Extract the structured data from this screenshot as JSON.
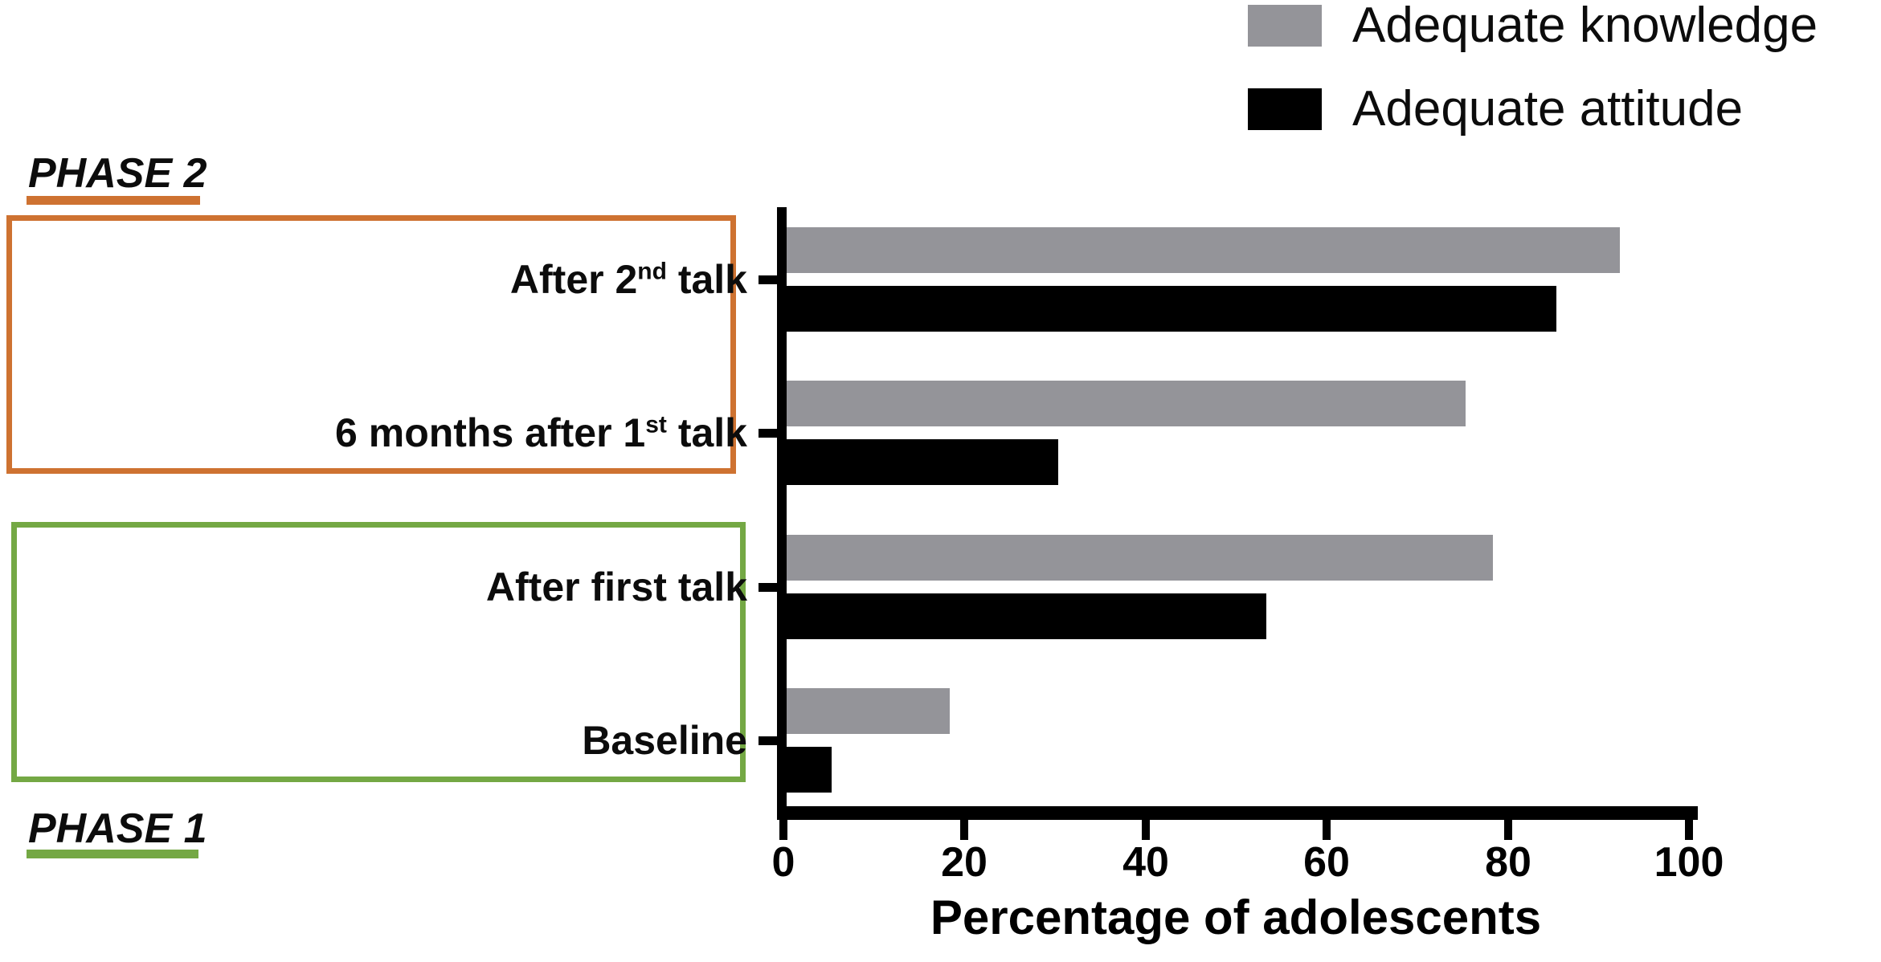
{
  "page": {
    "background": "#ffffff"
  },
  "legend": {
    "items": [
      {
        "label": "Adequate knowledge",
        "color": "#949499"
      },
      {
        "label": "Adequate attitude",
        "color": "#000000"
      }
    ]
  },
  "phases": {
    "phase2": {
      "label": "PHASE 2",
      "color": "#CE7231"
    },
    "phase1": {
      "label": "PHASE 1",
      "color": "#74A844"
    }
  },
  "chart_data": {
    "type": "bar",
    "orientation": "horizontal",
    "title": "",
    "xlabel": "Percentage of adolescents",
    "xlim": [
      0,
      100
    ],
    "xticks": [
      0,
      20,
      40,
      60,
      80,
      100
    ],
    "grid": false,
    "legend_position": "top-right",
    "categories": [
      {
        "pre": "After 2",
        "sup": "nd",
        "post": " talk"
      },
      {
        "pre": "6 months after 1",
        "sup": "st",
        "post": " talk"
      },
      {
        "pre": "After first talk",
        "sup": "",
        "post": ""
      },
      {
        "pre": "Baseline",
        "sup": "",
        "post": ""
      }
    ],
    "series": [
      {
        "name": "Adequate knowledge",
        "color": "#949499",
        "values": [
          92,
          75,
          78,
          18
        ]
      },
      {
        "name": "Adequate attitude",
        "color": "#000000",
        "values": [
          85,
          30,
          53,
          5
        ]
      }
    ],
    "phase_groups": [
      {
        "label": "PHASE 2",
        "color": "#CE7231",
        "categories": [
          "After 2nd talk",
          "6 months after 1st talk"
        ]
      },
      {
        "label": "PHASE 1",
        "color": "#74A844",
        "categories": [
          "After first talk",
          "Baseline"
        ]
      }
    ]
  }
}
